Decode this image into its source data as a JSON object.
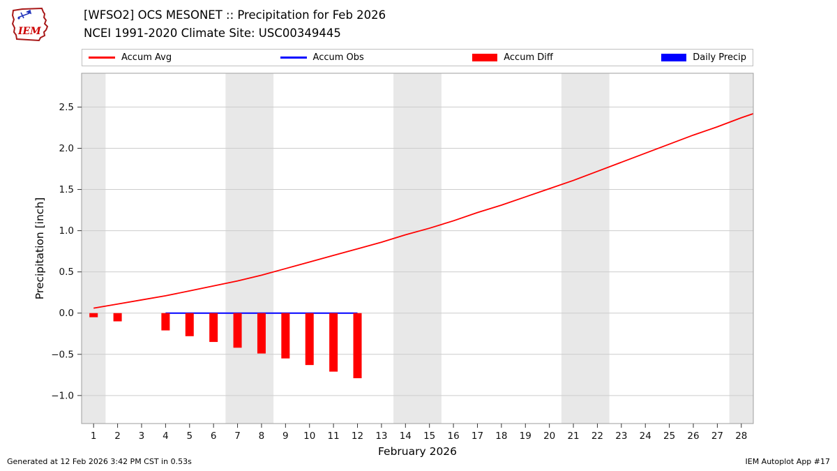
{
  "header": {
    "title_line1": "[WFSO2] OCS MESONET :: Precipitation for Feb 2026",
    "title_line2": "NCEI 1991-2020 Climate Site: USC00349445",
    "logo_text": "IEM"
  },
  "legend": [
    {
      "label": "Accum Avg",
      "type": "line",
      "color": "#ff0000"
    },
    {
      "label": "Accum Obs",
      "type": "line",
      "color": "#0000ff"
    },
    {
      "label": "Accum Diff",
      "type": "rect",
      "color": "#ff0000"
    },
    {
      "label": "Daily Precip",
      "type": "rect",
      "color": "#0000ff"
    }
  ],
  "footer": {
    "left": "Generated at 12 Feb 2026 3:42 PM CST in 0.53s",
    "right": "IEM Autoplot App #17"
  },
  "chart_data": {
    "type": "line+bar",
    "xlabel": "February 2026",
    "ylabel": "Precipitation [inch]",
    "xlim": [
      0.5,
      28.5
    ],
    "ylim": [
      -1.34,
      2.91
    ],
    "x_days": [
      1,
      2,
      3,
      4,
      5,
      6,
      7,
      8,
      9,
      10,
      11,
      12,
      13,
      14,
      15,
      16,
      17,
      18,
      19,
      20,
      21,
      22,
      23,
      24,
      25,
      26,
      27,
      28
    ],
    "yticks": [
      -1.0,
      -0.5,
      0.0,
      0.5,
      1.0,
      1.5,
      2.0,
      2.5
    ],
    "ytick_labels": [
      "−1.0",
      "−0.5",
      "0.0",
      "0.5",
      "1.0",
      "1.5",
      "2.0",
      "2.5"
    ],
    "grid_color": "#cccccc",
    "band_color": "#e8e8e8",
    "frame_color": "#9e9e9e",
    "weekend_bands_days": [
      [
        0.5,
        1.5
      ],
      [
        6.5,
        8.5
      ],
      [
        13.5,
        15.5
      ],
      [
        20.5,
        22.5
      ],
      [
        27.5,
        28.5
      ]
    ],
    "series": [
      {
        "name": "Accum Avg",
        "type": "line",
        "color": "#ff0000",
        "width": 1.8,
        "x": [
          1,
          2,
          3,
          4,
          5,
          6,
          7,
          8,
          9,
          10,
          11,
          12,
          13,
          14,
          15,
          16,
          17,
          18,
          19,
          20,
          21,
          22,
          23,
          24,
          25,
          26,
          27,
          28,
          28.5
        ],
        "values": [
          0.06,
          0.11,
          0.16,
          0.21,
          0.27,
          0.33,
          0.39,
          0.46,
          0.54,
          0.62,
          0.7,
          0.78,
          0.86,
          0.95,
          1.03,
          1.12,
          1.22,
          1.31,
          1.41,
          1.51,
          1.61,
          1.72,
          1.83,
          1.94,
          2.05,
          2.16,
          2.26,
          2.37,
          2.42
        ]
      },
      {
        "name": "Accum Obs",
        "type": "line",
        "color": "#0000ff",
        "width": 2,
        "x": [
          4,
          12
        ],
        "values": [
          0.0,
          0.0
        ]
      },
      {
        "name": "Accum Diff",
        "type": "bar",
        "color": "#ff0000",
        "x": [
          1,
          2,
          4,
          5,
          6,
          7,
          8,
          9,
          10,
          11,
          12
        ],
        "values": [
          -0.05,
          -0.1,
          -0.21,
          -0.28,
          -0.35,
          -0.42,
          -0.49,
          -0.55,
          -0.63,
          -0.71,
          -0.79
        ]
      },
      {
        "name": "Daily Precip",
        "type": "bar",
        "color": "#0000ff",
        "x": [],
        "values": []
      }
    ]
  }
}
